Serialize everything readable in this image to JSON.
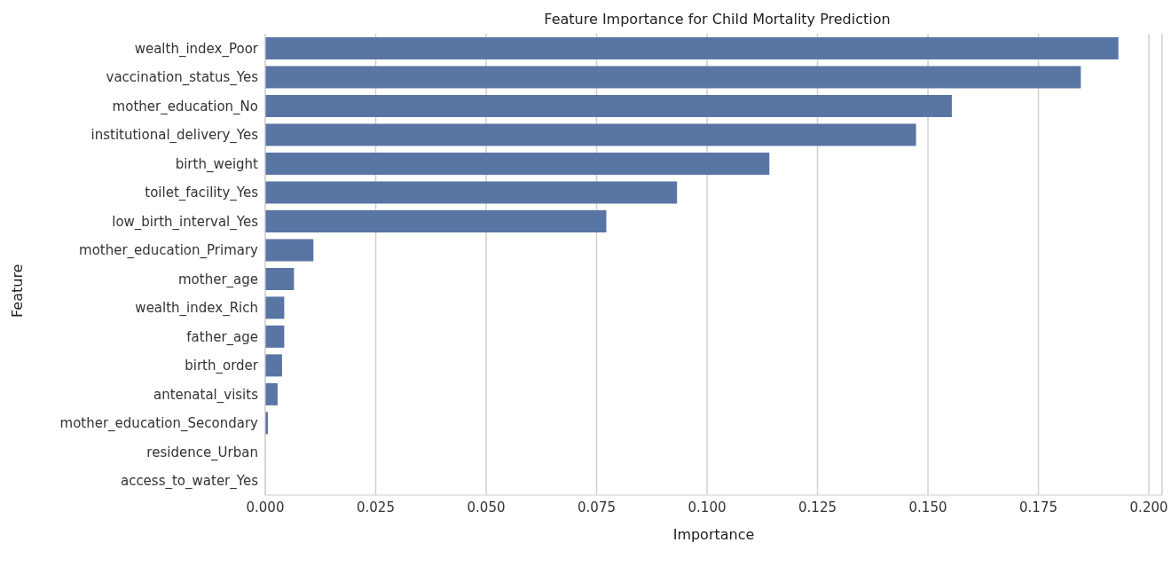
{
  "chart_data": {
    "type": "bar",
    "orientation": "horizontal",
    "title": "Feature Importance for Child Mortality Prediction",
    "xlabel": "Importance",
    "ylabel": "Feature",
    "categories": [
      "wealth_index_Poor",
      "vaccination_status_Yes",
      "mother_education_No",
      "institutional_delivery_Yes",
      "birth_weight",
      "toilet_facility_Yes",
      "low_birth_interval_Yes",
      "mother_education_Primary",
      "mother_age",
      "wealth_index_Rich",
      "father_age",
      "birth_order",
      "antenatal_visits",
      "mother_education_Secondary",
      "residence_Urban",
      "access_to_water_Yes"
    ],
    "values": [
      0.1931,
      0.1846,
      0.1554,
      0.1473,
      0.1141,
      0.0932,
      0.0772,
      0.0109,
      0.0065,
      0.0043,
      0.0043,
      0.0038,
      0.0028,
      0.0006,
      0,
      0
    ],
    "color": "#5975a4",
    "xlim": [
      0,
      0.203
    ],
    "xticks": [
      {
        "value": 0,
        "label": "0.000"
      },
      {
        "value": 0.025,
        "label": "0.025"
      },
      {
        "value": 0.05,
        "label": "0.050"
      },
      {
        "value": 0.075,
        "label": "0.075"
      },
      {
        "value": 0.1,
        "label": "0.100"
      },
      {
        "value": 0.125,
        "label": "0.125"
      },
      {
        "value": 0.15,
        "label": "0.150"
      },
      {
        "value": 0.175,
        "label": "0.175"
      },
      {
        "value": 0.2,
        "label": "0.200"
      }
    ],
    "grid": "x",
    "legend": false
  }
}
